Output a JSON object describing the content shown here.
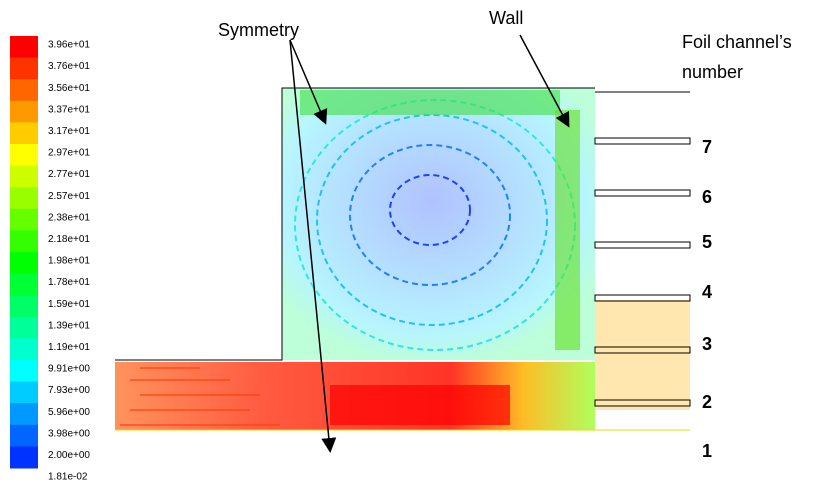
{
  "colorbar": {
    "labels": [
      "3.96e+01",
      "3.76e+01",
      "3.56e+01",
      "3.37e+01",
      "3.17e+01",
      "2.97e+01",
      "2.77e+01",
      "2.57e+01",
      "2.38e+01",
      "2.18e+01",
      "1.98e+01",
      "1.78e+01",
      "1.59e+01",
      "1.39e+01",
      "1.19e+01",
      "9.91e+00",
      "7.93e+00",
      "5.96e+00",
      "3.98e+00",
      "2.00e+00",
      "1.81e-02"
    ]
  },
  "annotations": {
    "symmetry": "Symmetry",
    "wall": "Wall",
    "foil_title_line1": "Foil channel’s",
    "foil_title_line2": "number"
  },
  "channels": [
    "7",
    "6",
    "5",
    "4",
    "3",
    "2",
    "1"
  ]
}
